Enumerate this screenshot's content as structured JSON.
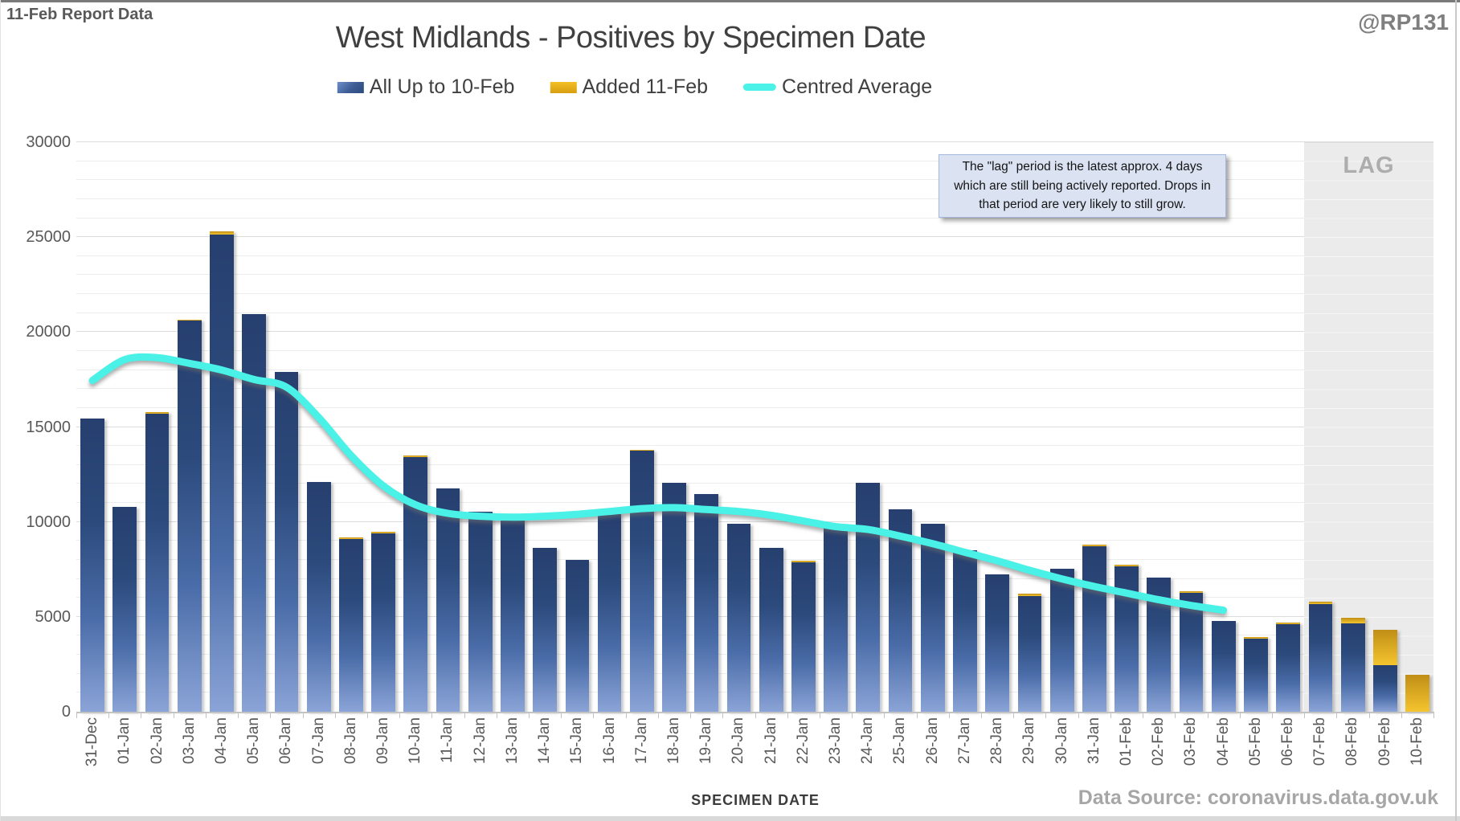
{
  "header": {
    "report_note": "11-Feb Report Data",
    "handle": "@RP131",
    "title": "West Midlands - Positives by Specimen Date"
  },
  "legend": {
    "all": "All Up to 10-Feb",
    "added": "Added 11-Feb",
    "average": "Centred Average"
  },
  "annotation": {
    "text": "The \"lag\" period is the latest approx. 4 days which are still being actively reported. Drops in that period are very likely to still grow."
  },
  "lag": {
    "label": "LAG",
    "start_category": "07-Feb",
    "end_category": "10-Feb"
  },
  "axes": {
    "x_title": "SPECIMEN DATE",
    "y_min": 0,
    "y_max": 30000,
    "y_major_step": 5000,
    "y_minor_step": 1000,
    "y_tick_labels": [
      "0",
      "5000",
      "10000",
      "15000",
      "20000",
      "25000",
      "30000"
    ]
  },
  "footer": {
    "source": "Data Source: coronavirus.data.gov.uk"
  },
  "colors": {
    "bar_blue_top": "#263f6f",
    "bar_blue_bottom": "#8ba4d7",
    "bar_gold_top": "#c08e16",
    "bar_gold_bottom": "#f5c52f",
    "average_line": "#49f1e8",
    "lag_fill": "#ebebeb",
    "text_gray": "#595959"
  },
  "chart_data": {
    "type": "combo",
    "subtype": "stacked-bar-with-line",
    "title": "West Midlands - Positives by Specimen Date",
    "xlabel": "SPECIMEN DATE",
    "ylabel": "",
    "ylim": [
      0,
      30000
    ],
    "grid": "minor-horizontal-1000",
    "legend_position": "top-center",
    "categories": [
      "31-Dec",
      "01-Jan",
      "02-Jan",
      "03-Jan",
      "04-Jan",
      "05-Jan",
      "06-Jan",
      "07-Jan",
      "08-Jan",
      "09-Jan",
      "10-Jan",
      "11-Jan",
      "12-Jan",
      "13-Jan",
      "14-Jan",
      "15-Jan",
      "16-Jan",
      "17-Jan",
      "18-Jan",
      "19-Jan",
      "20-Jan",
      "21-Jan",
      "22-Jan",
      "23-Jan",
      "24-Jan",
      "25-Jan",
      "26-Jan",
      "27-Jan",
      "28-Jan",
      "29-Jan",
      "30-Jan",
      "31-Jan",
      "01-Feb",
      "02-Feb",
      "03-Feb",
      "04-Feb",
      "05-Feb",
      "06-Feb",
      "07-Feb",
      "08-Feb",
      "09-Feb",
      "10-Feb"
    ],
    "series": [
      {
        "name": "All Up to 10-Feb",
        "type": "bar",
        "stack": "positives",
        "values": [
          15450,
          10800,
          15700,
          20600,
          25150,
          20950,
          17900,
          12100,
          9100,
          9400,
          13400,
          11750,
          10550,
          10200,
          8650,
          8000,
          10400,
          13750,
          12050,
          11450,
          9900,
          8650,
          7850,
          9850,
          12050,
          10650,
          9900,
          8500,
          7250,
          6100,
          7550,
          8700,
          7650,
          7050,
          6250,
          4800,
          3850,
          4600,
          5650,
          4650,
          2450,
          0
        ]
      },
      {
        "name": "Added 11-Feb",
        "type": "bar",
        "stack": "positives",
        "values": [
          0,
          0,
          100,
          50,
          150,
          0,
          0,
          0,
          100,
          100,
          100,
          0,
          0,
          0,
          0,
          0,
          50,
          50,
          0,
          0,
          0,
          0,
          100,
          0,
          0,
          0,
          0,
          0,
          0,
          100,
          0,
          100,
          100,
          0,
          100,
          0,
          100,
          100,
          150,
          300,
          1850,
          1950
        ]
      },
      {
        "name": "Centred Average",
        "type": "line",
        "values": [
          17450,
          18550,
          18650,
          18350,
          18000,
          17500,
          17100,
          15500,
          13500,
          11900,
          10900,
          10450,
          10300,
          10250,
          10300,
          10400,
          10550,
          10700,
          10750,
          10650,
          10550,
          10350,
          10050,
          9750,
          9600,
          9250,
          8850,
          8400,
          7950,
          7450,
          7000,
          6600,
          6250,
          5900,
          5600,
          5350,
          null,
          null,
          null,
          null,
          null,
          null
        ]
      }
    ],
    "lag_band_categories": [
      "07-Feb",
      "08-Feb",
      "09-Feb",
      "10-Feb"
    ]
  }
}
